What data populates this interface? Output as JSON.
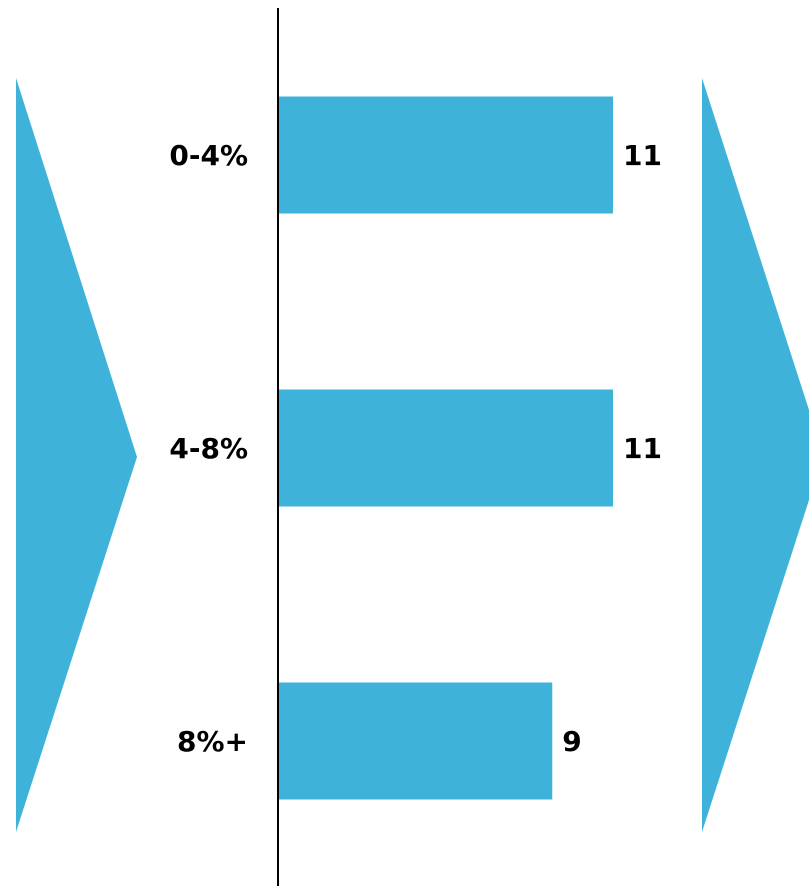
{
  "colors": {
    "bar": "#3fb2da",
    "chevron": "#3fb2da",
    "axis": "#000000",
    "text": "#000000"
  },
  "chart_data": {
    "type": "bar",
    "orientation": "horizontal",
    "categories": [
      "0-4%",
      "4-8%",
      "8%+"
    ],
    "values": [
      11,
      11,
      9
    ],
    "value_labels": [
      "11",
      "11",
      "9"
    ],
    "xlim": [
      0,
      12
    ],
    "grid": false,
    "legend": "none"
  },
  "decor": {
    "left_chevron_icon": "chevron-right-icon",
    "right_chevron_icon": "chevron-right-icon"
  }
}
